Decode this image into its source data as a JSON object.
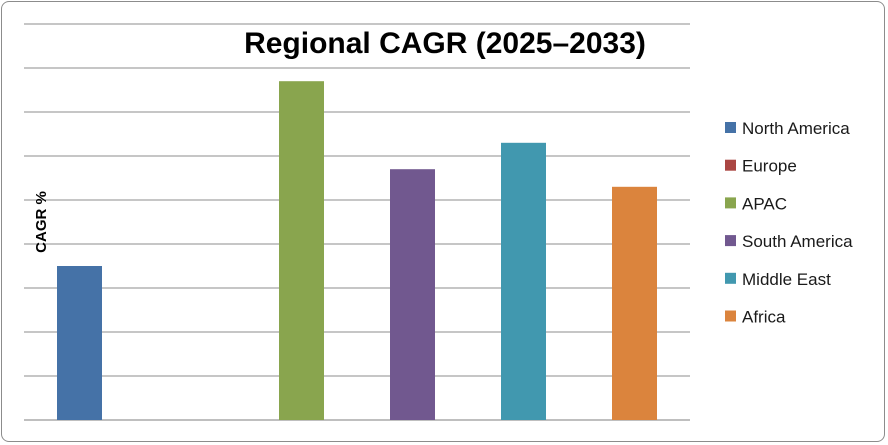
{
  "chart_data": {
    "type": "bar",
    "title": "Regional CAGR (2025–2033)",
    "xlabel": "",
    "ylabel": "CAGR %",
    "ylim": [
      0,
      9
    ],
    "grid": true,
    "legend_position": "right",
    "categories": [
      "North America",
      "Europe",
      "APAC",
      "South America",
      "Middle East",
      "Africa"
    ],
    "values": [
      3.5,
      0,
      7.7,
      5.7,
      6.3,
      5.3
    ],
    "colors": [
      "#4572A7",
      "#AA4643",
      "#89A54E",
      "#71588F",
      "#4198AF",
      "#DB843D"
    ]
  }
}
